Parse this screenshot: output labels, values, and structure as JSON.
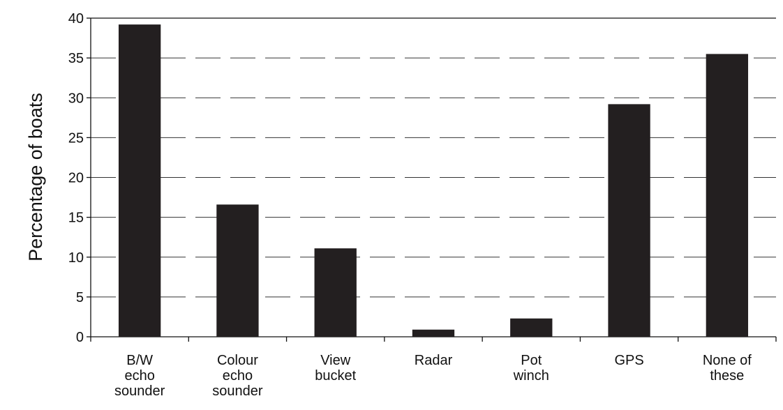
{
  "chart_data": {
    "type": "bar",
    "y_label": "Percentage of boats",
    "categories": [
      "B/W\necho\nsounder",
      "Colour\necho\nsounder",
      "View\nbucket",
      "Radar",
      "Pot\nwinch",
      "GPS",
      "None of\nthese"
    ],
    "values": [
      39.2,
      16.6,
      11.1,
      0.9,
      2.3,
      29.2,
      35.5
    ],
    "color": "#231f20",
    "ylim": [
      0,
      40
    ],
    "yticks": [
      0,
      5,
      10,
      15,
      20,
      25,
      30,
      35,
      40
    ],
    "grid": true
  }
}
